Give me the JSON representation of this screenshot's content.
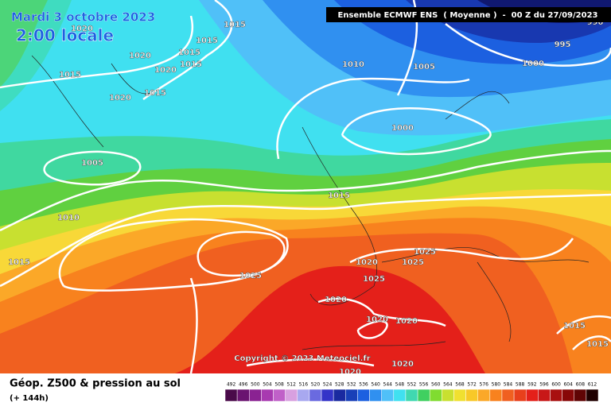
{
  "header": {
    "date": "Mardi 3 octobre 2023",
    "time": "2:00 locale",
    "model": "Ensemble ECMWF ENS  ( Moyenne )  -  00 Z du 27/09/2023"
  },
  "isobars": {
    "labels": [
      1015,
      1015,
      1015,
      1015,
      1020,
      1020,
      1015,
      1020,
      1015,
      1020,
      1010,
      1005,
      1000,
      995,
      990,
      1000,
      1005,
      1015,
      1010,
      1015,
      1025,
      1020,
      1025,
      1025,
      1025,
      1020,
      1020,
      1020,
      1015,
      1015,
      1020,
      1020
    ]
  },
  "copyright": "Copyright © 2023 Meteociel.fr",
  "legend": {
    "title": "Géop. Z500 & pression au sol",
    "lead": "(+ 144h)",
    "ticks": [
      492,
      496,
      500,
      504,
      508,
      512,
      516,
      520,
      524,
      528,
      532,
      536,
      540,
      544,
      548,
      552,
      556,
      560,
      564,
      568,
      572,
      576,
      580,
      584,
      588,
      592,
      596,
      600,
      604,
      608,
      612
    ],
    "colors": [
      "#4a0a4a",
      "#6a1470",
      "#8a2292",
      "#a83ab0",
      "#c060c8",
      "#d8a0e0",
      "#a8a8f0",
      "#6a6ae0",
      "#3434c8",
      "#1a2aa0",
      "#1840b8",
      "#1c60e0",
      "#3090f0",
      "#50c0f8",
      "#40e0f0",
      "#40d8b0",
      "#40d060",
      "#80dc30",
      "#c8e030",
      "#f0e030",
      "#f8c828",
      "#fba828",
      "#f8821e",
      "#f06020",
      "#e8401c",
      "#e4201a",
      "#c81818",
      "#a81010",
      "#880808",
      "#600404",
      "#200000"
    ]
  }
}
